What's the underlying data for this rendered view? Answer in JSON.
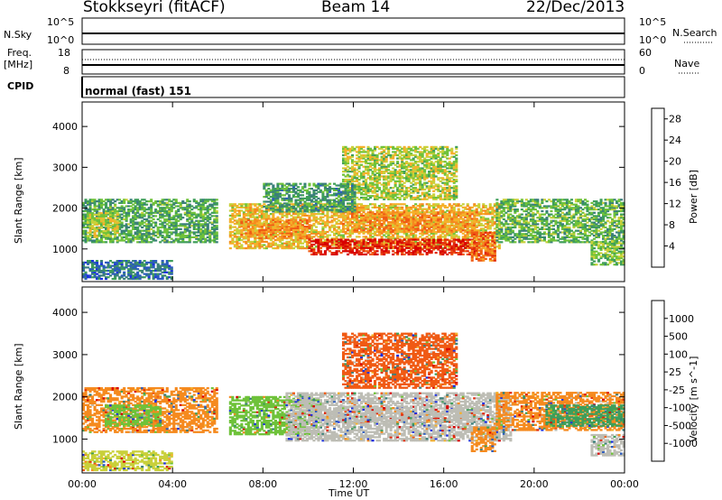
{
  "header": {
    "station": "Stokkseyri (fitACF)",
    "beam": "Beam 14",
    "date": "22/Dec/2013"
  },
  "top_panels": {
    "nsky_label": "N.Sky",
    "nsky_ticks": [
      "10^5",
      "10^0"
    ],
    "nsearch_label": "N.Search",
    "nsearch_ticks": [
      "10^5",
      "10^0"
    ],
    "freq_label": "Freq.",
    "freq_unit": "[MHz]",
    "freq_ticks": [
      "18",
      "8"
    ],
    "nave_label": "Nave",
    "nave_ticks": [
      "60",
      "0"
    ],
    "cpid_label": "CPID",
    "cpid_value": "normal (fast) 151"
  },
  "chart_data": [
    {
      "type": "heatmap",
      "name": "power",
      "ylabel": "Slant Range [km]",
      "xlabel": "Time UT",
      "ylim": [
        200,
        4600
      ],
      "yticks": [
        "1000",
        "2000",
        "3000",
        "4000"
      ],
      "xticks": [
        "00:00",
        "04:00",
        "08:00",
        "12:00",
        "16:00",
        "20:00",
        "00:00"
      ],
      "x_range_hours": [
        0,
        24
      ],
      "colorbar": {
        "label": "Power [dB]",
        "ticks": [
          "4",
          "8",
          "12",
          "16",
          "20",
          "24",
          "28"
        ],
        "range": [
          0,
          30
        ],
        "colors": [
          "#1a2fe0",
          "#2a5bbf",
          "#3a7f7a",
          "#3f9e5a",
          "#6fc23a",
          "#c9d03a",
          "#f5b02a",
          "#f58a1f",
          "#f05a14",
          "#e12a0c",
          "#d80000"
        ]
      },
      "regions": [
        {
          "t0": 0.0,
          "t1": 5.9,
          "r0": 1150,
          "r1": 2200,
          "level": 10
        },
        {
          "t0": 0.2,
          "t1": 1.6,
          "r0": 1300,
          "r1": 1900,
          "level": 15
        },
        {
          "t0": 0.0,
          "t1": 4.0,
          "r0": 250,
          "r1": 700,
          "level": 6
        },
        {
          "t0": 6.5,
          "t1": 18.5,
          "r0": 1000,
          "r1": 2100,
          "level": 17
        },
        {
          "t0": 7.0,
          "t1": 10.0,
          "r0": 1250,
          "r1": 1700,
          "level": 20
        },
        {
          "t0": 10.0,
          "t1": 17.5,
          "r0": 850,
          "r1": 1250,
          "level": 27
        },
        {
          "t0": 11.5,
          "t1": 17.5,
          "r0": 1400,
          "r1": 1900,
          "level": 20
        },
        {
          "t0": 11.5,
          "t1": 16.5,
          "r0": 2200,
          "r1": 3500,
          "level": 14
        },
        {
          "t0": 17.2,
          "t1": 18.3,
          "r0": 700,
          "r1": 1400,
          "level": 22
        },
        {
          "t0": 18.3,
          "t1": 24.0,
          "r0": 1150,
          "r1": 2200,
          "level": 11
        },
        {
          "t0": 22.5,
          "t1": 24.0,
          "r0": 600,
          "r1": 1200,
          "level": 12
        },
        {
          "t0": 8.0,
          "t1": 12.0,
          "r0": 1900,
          "r1": 2600,
          "level": 9
        }
      ]
    },
    {
      "type": "heatmap",
      "name": "velocity",
      "ylabel": "Slant Range [km]",
      "xlabel": "Time UT",
      "ylim": [
        200,
        4600
      ],
      "yticks": [
        "1000",
        "2000",
        "3000",
        "4000"
      ],
      "xticks": [
        "00:00",
        "04:00",
        "08:00",
        "12:00",
        "16:00",
        "20:00",
        "00:00"
      ],
      "x_range_hours": [
        0,
        24
      ],
      "colorbar": {
        "label": "Velocity [m s^-1]",
        "ticks": [
          "1000",
          "500",
          "100",
          "25",
          "-25",
          "-100",
          "-500",
          "-1000"
        ],
        "colors": [
          "#1a2fe0",
          "#2a5bbf",
          "#3a7f7a",
          "#3f9e5a",
          "#6fc23a",
          "#bdbdb5",
          "#f5b02a",
          "#f58a1f",
          "#f05a14",
          "#e12a0c",
          "#d80000"
        ]
      },
      "regions": [
        {
          "t0": 0.0,
          "t1": 5.9,
          "r0": 1150,
          "r1": 2200,
          "color": "#f58a1f"
        },
        {
          "t0": 1.0,
          "t1": 3.5,
          "r0": 1300,
          "r1": 1800,
          "color": "#6fc23a"
        },
        {
          "t0": 0.0,
          "t1": 4.0,
          "r0": 250,
          "r1": 700,
          "color": "#c9d03a"
        },
        {
          "t0": 6.5,
          "t1": 10.5,
          "r0": 1100,
          "r1": 2000,
          "color": "#6fc23a"
        },
        {
          "t0": 9.0,
          "t1": 19.0,
          "r0": 950,
          "r1": 2100,
          "color": "#bdbdb5"
        },
        {
          "t0": 10.0,
          "t1": 17.5,
          "r0": 1400,
          "r1": 1800,
          "color": "#bdbdb5"
        },
        {
          "t0": 11.5,
          "t1": 16.5,
          "r0": 2200,
          "r1": 3500,
          "color": "#f05a14"
        },
        {
          "t0": 17.2,
          "t1": 18.3,
          "r0": 700,
          "r1": 1300,
          "color": "#f58a1f"
        },
        {
          "t0": 18.3,
          "t1": 24.0,
          "r0": 1200,
          "r1": 2100,
          "color": "#f58a1f"
        },
        {
          "t0": 20.5,
          "t1": 24.0,
          "r0": 1300,
          "r1": 1800,
          "color": "#3f9e5a"
        },
        {
          "t0": 22.5,
          "t1": 24.0,
          "r0": 600,
          "r1": 1100,
          "color": "#bdbdb5"
        }
      ]
    }
  ]
}
